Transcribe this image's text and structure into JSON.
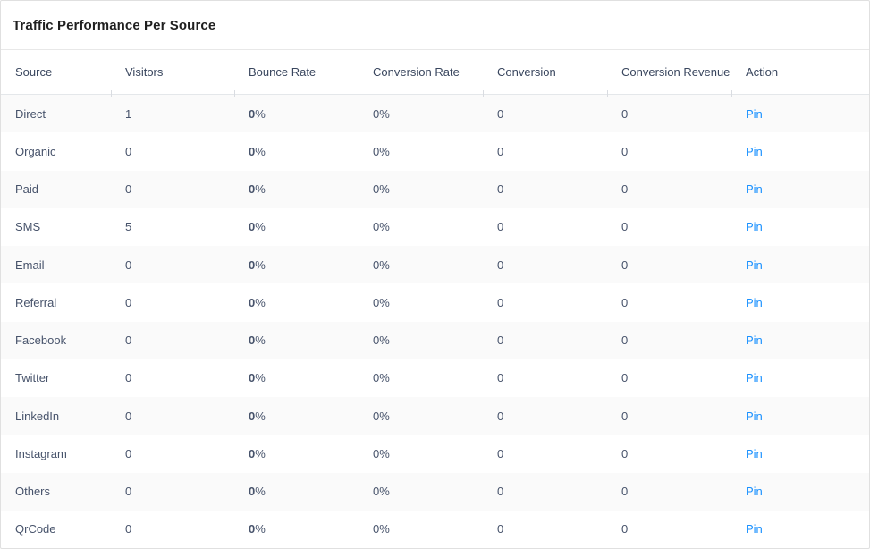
{
  "card": {
    "title": "Traffic Performance Per Source"
  },
  "table": {
    "columns": [
      {
        "id": "source",
        "label": "Source"
      },
      {
        "id": "visitors",
        "label": "Visitors"
      },
      {
        "id": "bounce_rate",
        "label": "Bounce Rate"
      },
      {
        "id": "conversion_rate",
        "label": "Conversion Rate"
      },
      {
        "id": "conversion",
        "label": "Conversion"
      },
      {
        "id": "conversion_revenue",
        "label": "Conversion Revenue"
      },
      {
        "id": "action",
        "label": "Action"
      }
    ],
    "rows": [
      {
        "source": "Direct",
        "visitors": "1",
        "bounce_value": "0",
        "bounce_unit": "%",
        "conversion_rate": "0%",
        "conversion": "0",
        "conversion_revenue": "0",
        "action_label": "Pin"
      },
      {
        "source": "Organic",
        "visitors": "0",
        "bounce_value": "0",
        "bounce_unit": "%",
        "conversion_rate": "0%",
        "conversion": "0",
        "conversion_revenue": "0",
        "action_label": "Pin"
      },
      {
        "source": "Paid",
        "visitors": "0",
        "bounce_value": "0",
        "bounce_unit": "%",
        "conversion_rate": "0%",
        "conversion": "0",
        "conversion_revenue": "0",
        "action_label": "Pin"
      },
      {
        "source": "SMS",
        "visitors": "5",
        "bounce_value": "0",
        "bounce_unit": "%",
        "conversion_rate": "0%",
        "conversion": "0",
        "conversion_revenue": "0",
        "action_label": "Pin"
      },
      {
        "source": "Email",
        "visitors": "0",
        "bounce_value": "0",
        "bounce_unit": "%",
        "conversion_rate": "0%",
        "conversion": "0",
        "conversion_revenue": "0",
        "action_label": "Pin"
      },
      {
        "source": "Referral",
        "visitors": "0",
        "bounce_value": "0",
        "bounce_unit": "%",
        "conversion_rate": "0%",
        "conversion": "0",
        "conversion_revenue": "0",
        "action_label": "Pin"
      },
      {
        "source": "Facebook",
        "visitors": "0",
        "bounce_value": "0",
        "bounce_unit": "%",
        "conversion_rate": "0%",
        "conversion": "0",
        "conversion_revenue": "0",
        "action_label": "Pin"
      },
      {
        "source": "Twitter",
        "visitors": "0",
        "bounce_value": "0",
        "bounce_unit": "%",
        "conversion_rate": "0%",
        "conversion": "0",
        "conversion_revenue": "0",
        "action_label": "Pin"
      },
      {
        "source": "LinkedIn",
        "visitors": "0",
        "bounce_value": "0",
        "bounce_unit": "%",
        "conversion_rate": "0%",
        "conversion": "0",
        "conversion_revenue": "0",
        "action_label": "Pin"
      },
      {
        "source": "Instagram",
        "visitors": "0",
        "bounce_value": "0",
        "bounce_unit": "%",
        "conversion_rate": "0%",
        "conversion": "0",
        "conversion_revenue": "0",
        "action_label": "Pin"
      },
      {
        "source": "Others",
        "visitors": "0",
        "bounce_value": "0",
        "bounce_unit": "%",
        "conversion_rate": "0%",
        "conversion": "0",
        "conversion_revenue": "0",
        "action_label": "Pin"
      },
      {
        "source": "QrCode",
        "visitors": "0",
        "bounce_value": "0",
        "bounce_unit": "%",
        "conversion_rate": "0%",
        "conversion": "0",
        "conversion_revenue": "0",
        "action_label": "Pin"
      }
    ]
  },
  "colors": {
    "link_blue": "#1890ff",
    "row_stripe": "#fafafa",
    "header_text": "#39465e",
    "body_text": "#47536b",
    "card_border": "#e0e0e0"
  }
}
